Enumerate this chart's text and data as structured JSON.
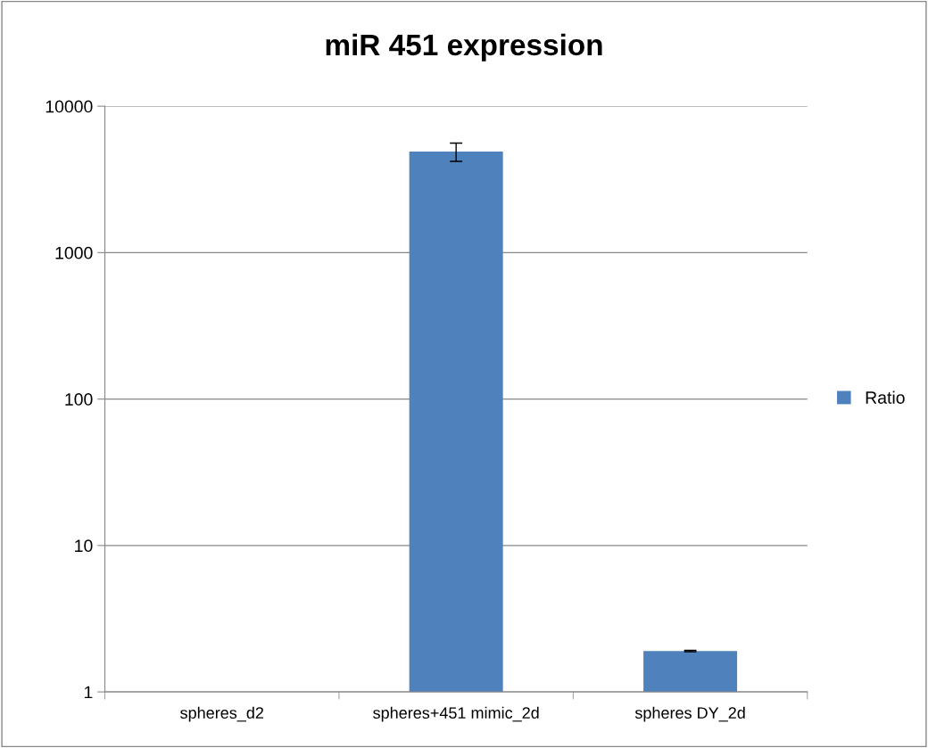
{
  "chart_data": {
    "type": "bar",
    "title": "miR 451 expression",
    "categories": [
      "spheres_d2",
      "spheres+451 mimic_2d",
      "spheres DY_2d"
    ],
    "series": [
      {
        "name": "Ratio",
        "color": "#4f81bd",
        "values": [
          1,
          4900,
          1.9
        ],
        "errors": [
          null,
          700,
          0.02
        ]
      }
    ],
    "log": "y",
    "ylim": [
      1,
      10000
    ],
    "yticks": [
      1,
      10,
      100,
      1000,
      10000
    ],
    "grid": "y",
    "legend": "right"
  }
}
